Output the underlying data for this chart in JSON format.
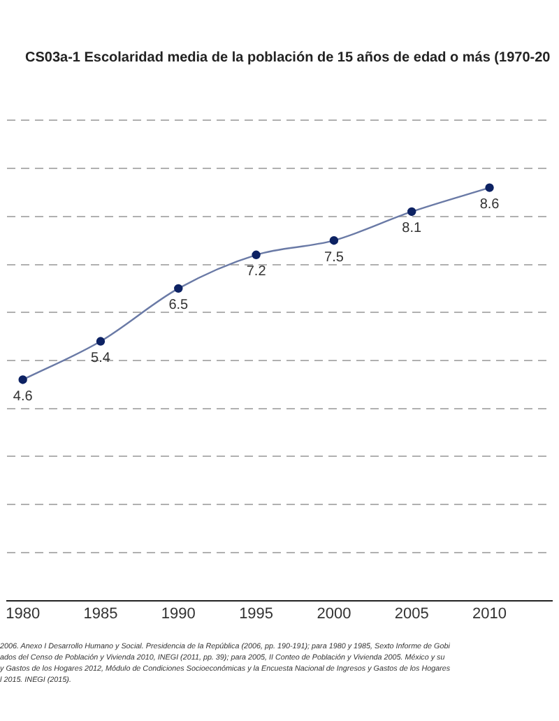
{
  "chart_data": {
    "type": "line",
    "title": "CS03a-1 Escolaridad media de la población de 15 años de edad o más (1970-20",
    "x": [
      1980,
      1985,
      1990,
      1995,
      2000,
      2005,
      2010
    ],
    "series": [
      {
        "color": "#0d2263",
        "values": [
          4.6,
          5.4,
          6.5,
          7.2,
          7.5,
          8.1,
          8.6
        ]
      }
    ],
    "xlim": [
      1979,
      2014
    ],
    "xticks": [
      1980,
      1985,
      1990,
      1995,
      2000,
      2005,
      2010
    ],
    "ylim": [
      0,
      10
    ],
    "yticks": [
      {
        "value": 1,
        "label": null
      },
      {
        "value": 2,
        "label": null
      },
      {
        "value": 3,
        "label": null
      },
      {
        "value": 4,
        "label": null
      },
      {
        "value": 5,
        "label": null
      },
      {
        "value": 6,
        "label": null
      },
      {
        "value": 7,
        "label": null
      },
      {
        "value": 8,
        "label": null
      },
      {
        "value": 9,
        "label": null
      },
      {
        "value": 10,
        "label": null
      }
    ],
    "tick_labels": "x",
    "grid": "y",
    "marker": "circle",
    "line_style": "solid",
    "data_labels": true,
    "legend": false,
    "annotations": [
      "2006. Anexo I Desarrollo Humano y Social. Presidencia de la República (2006, pp. 190-191); para 1980 y 1985, Sexto Informe de Gobi",
      "ados del Censo de Población y Vivienda 2010, INEGI (2011, pp. 39); para 2005, II Conteo de Población y Vivienda 2005. México y su",
      "y Gastos de los Hogares 2012, Módulo de Condiciones Socioeconómicas y la Encuesta Nacional de Ingresos y Gastos de los Hogares",
      "l 2015. INEGI (2015)."
    ]
  }
}
